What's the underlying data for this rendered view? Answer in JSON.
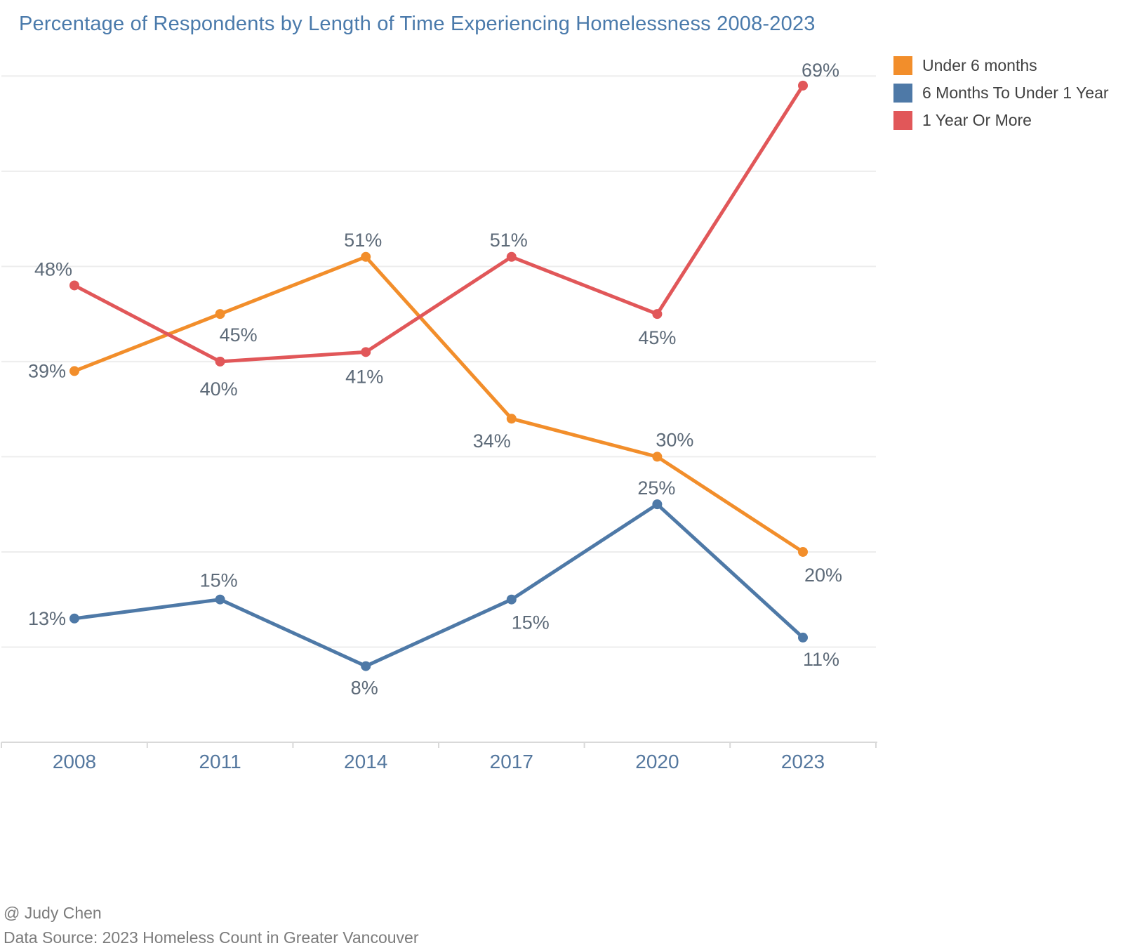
{
  "title": "Percentage of Respondents by Length of Time Experiencing Homelessness 2008-2023",
  "chart_data": {
    "type": "line",
    "title": "Percentage of Respondents by Length of Time Experiencing Homelessness 2008-2023",
    "categories": [
      "2008",
      "2011",
      "2014",
      "2017",
      "2020",
      "2023"
    ],
    "series": [
      {
        "name": "Under 6 months",
        "color": "#f28e2b",
        "values": [
          39,
          45,
          51,
          34,
          30,
          20
        ]
      },
      {
        "name": "6 Months To Under 1 Year",
        "color": "#4e79a7",
        "values": [
          13,
          15,
          8,
          15,
          25,
          11
        ]
      },
      {
        "name": "1 Year Or More",
        "color": "#e15759",
        "values": [
          48,
          40,
          41,
          51,
          45,
          69
        ]
      }
    ],
    "value_label_format": "{value}%",
    "xlabel": "",
    "ylabel": "",
    "ylim": [
      0,
      75
    ],
    "grid": "horizontal gridlines every 10%, no y-axis tick labels",
    "legend_position": "top-right",
    "markers": "filled circles at each data point"
  },
  "legend_note": "legend entries mirror chart_data.series names",
  "footer": {
    "credit": "@ Judy Chen",
    "source": "Data Source: 2023 Homeless Count in Greater Vancouver"
  },
  "colors": {
    "title_text": "#4a7aab",
    "axis_label_text": "#54779e",
    "data_label_text": "#5d6a78",
    "legend_text": "#414141",
    "footer_text": "#7b7b7b",
    "gridline": "#ededed",
    "axis_line": "#d9d9d9"
  }
}
